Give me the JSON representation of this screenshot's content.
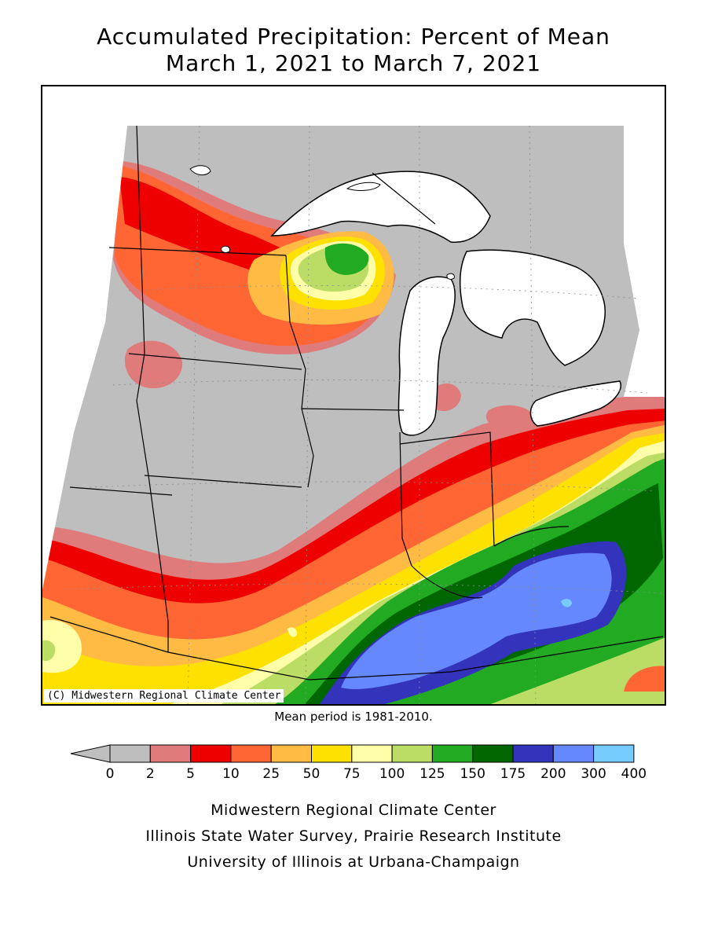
{
  "title_line1": "Accumulated Precipitation: Percent of Mean",
  "title_line2": "March 1, 2021 to March 7, 2021",
  "copyright": "(C) Midwestern Regional Climate Center",
  "mean_note": "Mean period is 1981-2010.",
  "legend": {
    "thresholds": [
      "0",
      "2",
      "5",
      "10",
      "25",
      "50",
      "75",
      "100",
      "125",
      "150",
      "175",
      "200",
      "300",
      "400"
    ],
    "colors": [
      "#bebebe",
      "#e07b7b",
      "#ee0000",
      "#ff6633",
      "#ffbb44",
      "#ffe100",
      "#ffffaa",
      "#bbdd66",
      "#22aa22",
      "#006600",
      "#3333bb",
      "#6688ff",
      "#77ccff"
    ]
  },
  "credits": [
    "Midwestern Regional Climate Center",
    "Illinois State Water Survey, Prairie Research Institute",
    "University of Illinois at Urbana-Champaign"
  ],
  "map_colors": {
    "gray": "#bebebe",
    "pink": "#e07b7b",
    "red": "#ee0000",
    "orange": "#ff6633",
    "lightorange": "#ffbb44",
    "yellow": "#ffe100",
    "paleyellow": "#ffffaa",
    "lightgreen": "#bbdd66",
    "green": "#22aa22",
    "darkgreen": "#006600",
    "navy": "#3333bb",
    "blue": "#6688ff",
    "lightblue": "#77ccff",
    "lake": "#ffffff"
  }
}
